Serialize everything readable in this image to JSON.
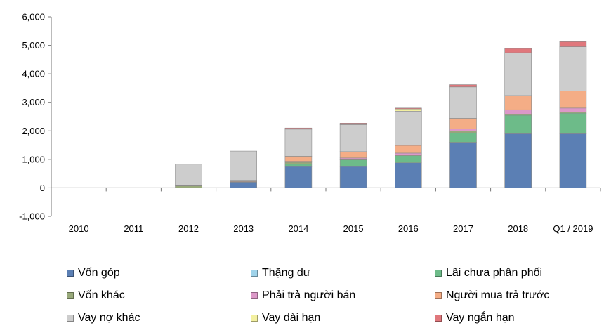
{
  "chart_data": {
    "type": "bar",
    "stacked": true,
    "categories": [
      "2010",
      "2011",
      "2012",
      "2013",
      "2014",
      "2015",
      "2016",
      "2017",
      "2018",
      "Q1 / 2019"
    ],
    "yticks": [
      "6,000",
      "5,000",
      "4,000",
      "3,000",
      "2,000",
      "1,000",
      "0",
      "-1,000"
    ],
    "ylim": [
      -1000,
      6000
    ],
    "grid": false,
    "legend_position": "bottom",
    "series": [
      {
        "name": "Vốn góp",
        "color": "#5b7fb4",
        "values": [
          0,
          0,
          0,
          200,
          750,
          750,
          880,
          1600,
          1900,
          1900
        ]
      },
      {
        "name": "Thặng dư",
        "color": "#9fd3ea",
        "values": [
          0,
          0,
          0,
          0,
          0,
          0,
          0,
          0,
          0,
          0
        ]
      },
      {
        "name": "Lãi chưa phân phối",
        "color": "#6dbb89",
        "values": [
          0,
          0,
          0,
          0,
          80,
          230,
          250,
          330,
          650,
          720
        ]
      },
      {
        "name": "Vốn khác",
        "color": "#98a97a",
        "values": [
          0,
          0,
          70,
          10,
          70,
          20,
          30,
          60,
          40,
          40
        ]
      },
      {
        "name": "Phải trả người bán",
        "color": "#dc98c8",
        "values": [
          0,
          0,
          10,
          10,
          30,
          50,
          60,
          80,
          150,
          140
        ]
      },
      {
        "name": "Người mua trả trước",
        "color": "#f4ad86",
        "values": [
          0,
          0,
          0,
          20,
          180,
          220,
          270,
          370,
          500,
          600
        ]
      },
      {
        "name": "Vay nợ khác",
        "color": "#cdcdcd",
        "values": [
          0,
          0,
          750,
          1050,
          950,
          950,
          1200,
          1100,
          1500,
          1550
        ]
      },
      {
        "name": "Vay dài hạn",
        "color": "#f3f0a0",
        "values": [
          0,
          0,
          0,
          0,
          0,
          0,
          80,
          0,
          0,
          0
        ]
      },
      {
        "name": "Vay ngắn hạn",
        "color": "#e0777c",
        "values": [
          0,
          0,
          0,
          0,
          40,
          50,
          30,
          80,
          150,
          180
        ]
      }
    ]
  }
}
